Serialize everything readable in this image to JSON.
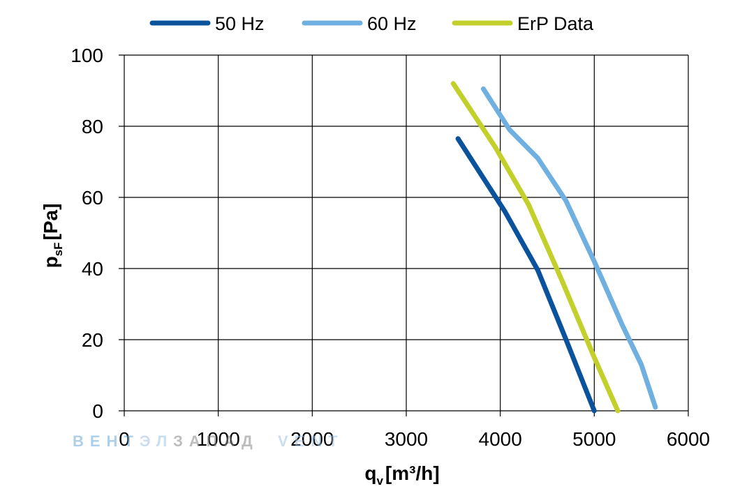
{
  "chart_data": {
    "type": "line",
    "title": "",
    "xlabel": {
      "main": "q",
      "sub": "v",
      "unit": "[m³/h]"
    },
    "ylabel": {
      "main": "p",
      "sub": "sF",
      "unit": "[Pa]"
    },
    "xlim": [
      0,
      6000
    ],
    "ylim": [
      0,
      100
    ],
    "xticks": [
      "0",
      "1000",
      "2000",
      "3000",
      "4000",
      "5000",
      "6000"
    ],
    "yticks": [
      "0",
      "20",
      "40",
      "60",
      "80",
      "100"
    ],
    "grid": true,
    "legend_position": "top",
    "series": [
      {
        "name": "50 Hz",
        "color": "#0a539c",
        "x": [
          3550,
          4050,
          4400,
          4700,
          5000
        ],
        "y": [
          76.5,
          56,
          39.5,
          20,
          0
        ]
      },
      {
        "name": "60 Hz",
        "color": "#6fb0e0",
        "x": [
          3820,
          4100,
          4400,
          4700,
          5000,
          5300,
          5500,
          5650
        ],
        "y": [
          90.5,
          79,
          71,
          59,
          42,
          24,
          13,
          1
        ]
      },
      {
        "name": "ErP Data",
        "color": "#c3cf2a",
        "x": [
          3500,
          3950,
          4300,
          4650,
          5000,
          5250
        ],
        "y": [
          92,
          74,
          58,
          37,
          15,
          0
        ]
      }
    ]
  },
  "watermark": {
    "left": "ВЕНТ",
    "middle": "ЭЛ",
    "right": "ЗАПАД",
    "brand": "VENT"
  }
}
